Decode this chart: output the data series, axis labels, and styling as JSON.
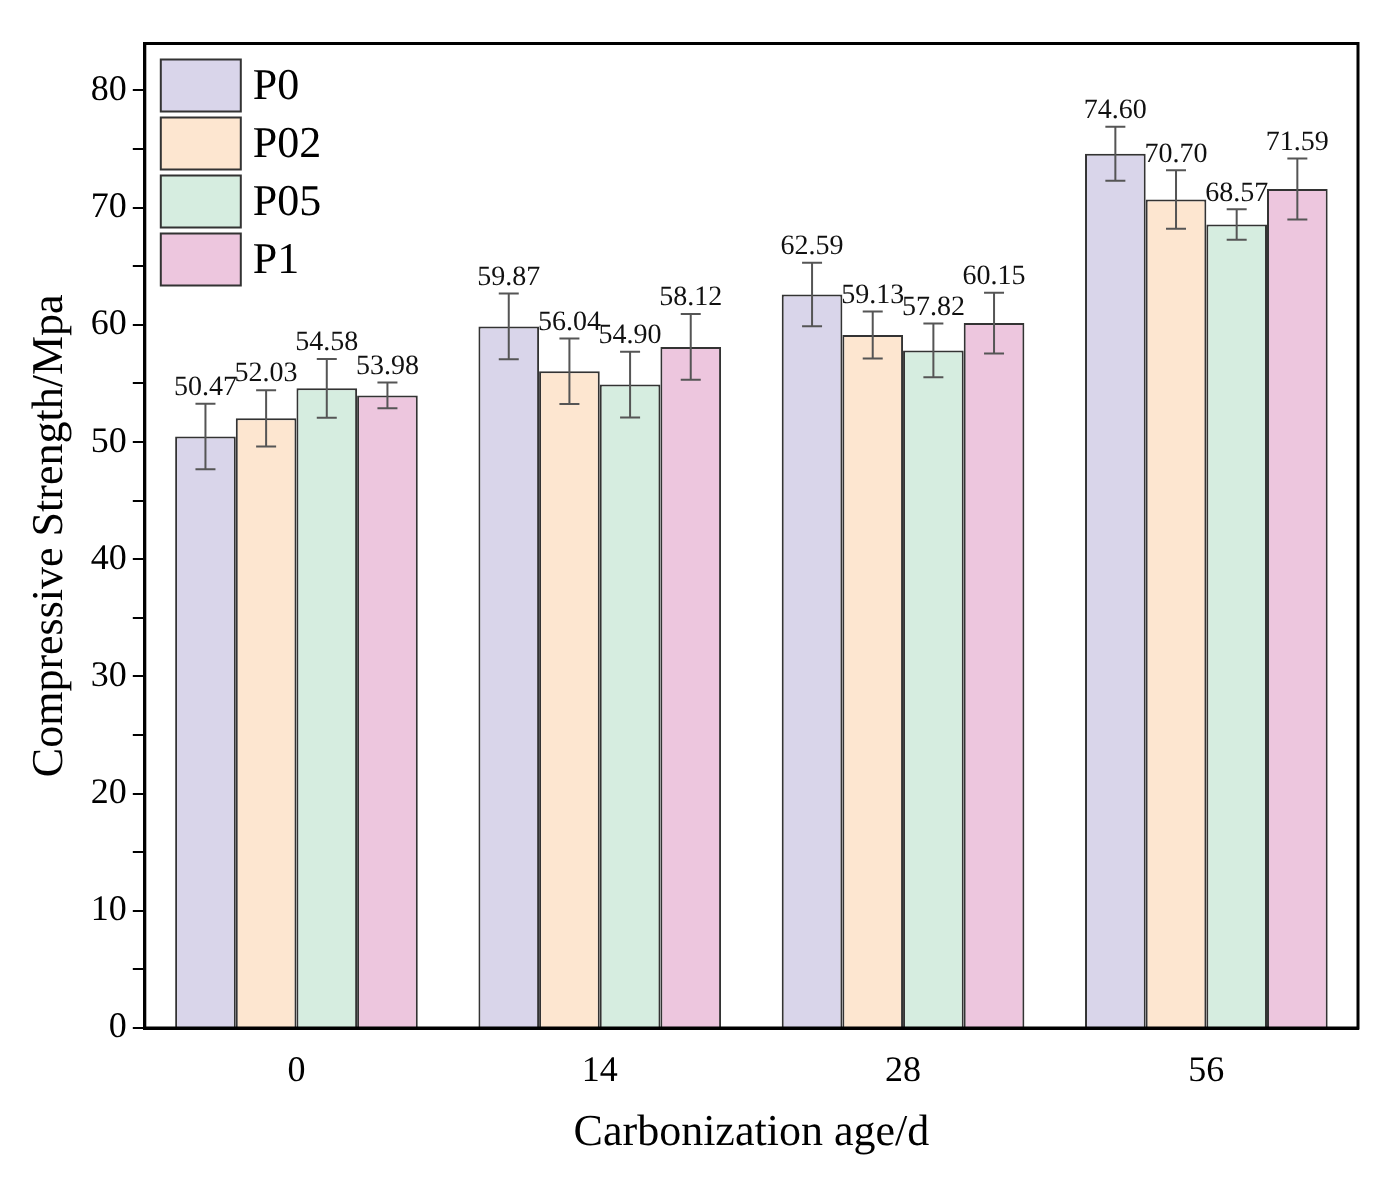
{
  "chart_data": {
    "type": "bar",
    "xlabel": "Carbonization age/d",
    "ylabel": "Compressive Strength/Mpa",
    "categories": [
      "0",
      "14",
      "28",
      "56"
    ],
    "series": [
      {
        "name": "P0",
        "color": "#d9d5ea",
        "values": [
          50.47,
          59.87,
          62.59,
          74.6
        ],
        "errors": [
          2.8,
          2.8,
          2.7,
          2.3
        ],
        "value_labels": [
          "50.47",
          "59.87",
          "62.59",
          "74.60"
        ]
      },
      {
        "name": "P02",
        "color": "#fde6d0",
        "values": [
          52.03,
          56.04,
          59.13,
          70.7
        ],
        "errors": [
          2.4,
          2.8,
          2.0,
          2.5
        ],
        "value_labels": [
          "52.03",
          "56.04",
          "59.13",
          "70.70"
        ]
      },
      {
        "name": "P05",
        "color": "#d6ede0",
        "values": [
          54.58,
          54.9,
          57.82,
          68.57
        ],
        "errors": [
          2.5,
          2.8,
          2.3,
          1.3
        ],
        "value_labels": [
          "54.58",
          "54.90",
          "57.82",
          "68.57"
        ]
      },
      {
        "name": "P1",
        "color": "#edc6de",
        "values": [
          53.98,
          58.12,
          60.15,
          71.59
        ],
        "errors": [
          1.1,
          2.8,
          2.6,
          2.6
        ],
        "value_labels": [
          "53.98",
          "58.12",
          "60.15",
          "71.59"
        ]
      }
    ],
    "ylim": [
      0,
      84
    ],
    "yticks": [
      0,
      {
        "value": 5,
        "label": null
      },
      10,
      {
        "value": 15,
        "label": null
      },
      20,
      {
        "value": 25,
        "label": null
      },
      30,
      {
        "value": 35,
        "label": null
      },
      40,
      {
        "value": 45,
        "label": null
      },
      50,
      {
        "value": 55,
        "label": null
      },
      60,
      {
        "value": 65,
        "label": null
      },
      70,
      {
        "value": 75,
        "label": null
      },
      80
    ],
    "legend": "top left",
    "grid": false
  }
}
